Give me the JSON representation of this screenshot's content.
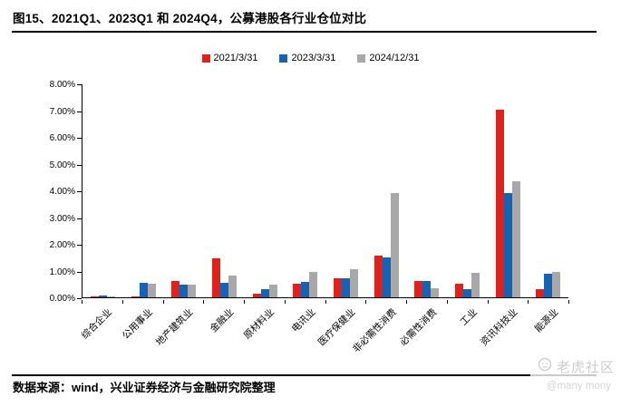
{
  "header": {
    "title": "图15、2021Q1、2023Q1 和 2024Q4，公募港股各行业仓位对比"
  },
  "chart_data": {
    "type": "bar",
    "title": "图15、2021Q1、2023Q1 和 2024Q4，公募港股各行业仓位对比",
    "categories": [
      "综合企业",
      "公用事业",
      "地产建筑业",
      "金融业",
      "原材料业",
      "电讯业",
      "医疗保健业",
      "非必需性消费",
      "必需性消费",
      "工业",
      "资讯科技业",
      "能源业"
    ],
    "series": [
      {
        "name": "2021/3/31",
        "color": "#e1201a",
        "values": [
          0.05,
          0.05,
          0.6,
          1.45,
          0.15,
          0.52,
          0.73,
          1.55,
          0.6,
          0.5,
          7.05,
          0.3
        ]
      },
      {
        "name": "2023/3/31",
        "color": "#1463b4",
        "values": [
          0.06,
          0.55,
          0.47,
          0.55,
          0.3,
          0.57,
          0.7,
          1.5,
          0.61,
          0.3,
          3.92,
          0.88
        ]
      },
      {
        "name": "2024/12/31",
        "color": "#a8a8a8",
        "values": [
          0.03,
          0.52,
          0.47,
          0.82,
          0.47,
          0.95,
          1.04,
          3.93,
          0.35,
          0.92,
          4.35,
          0.97
        ]
      }
    ],
    "ylim": [
      0,
      8
    ],
    "y_ticks": [
      "8.00%",
      "7.00%",
      "6.00%",
      "5.00%",
      "4.00%",
      "3.00%",
      "2.00%",
      "1.00%",
      "0.00%"
    ],
    "xlabel": "",
    "ylabel": "",
    "grid": false,
    "legend_position": "top",
    "axis_color": "#000000"
  },
  "footer": {
    "source": "数据来源：wind，兴业证券经济与金融研究院整理"
  },
  "watermark": {
    "name": "老虎社区",
    "handle": "@many mony"
  }
}
